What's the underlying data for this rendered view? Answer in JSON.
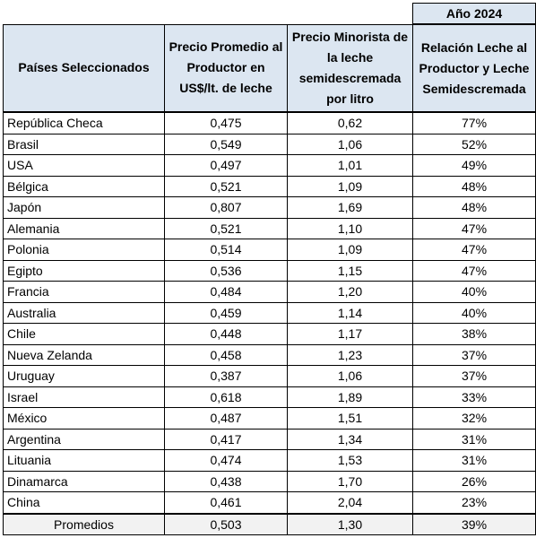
{
  "year_label": "Año 2024",
  "table": {
    "header": [
      "Países Seleccionados",
      "Precio Promedio al Productor en US$/lt. de leche",
      "Precio Minorista de la leche semidescremada por litro",
      "Relación Leche al Productor y Leche Semidescremada"
    ],
    "rows": [
      [
        "República Checa",
        "0,475",
        "0,62",
        "77%"
      ],
      [
        "Brasil",
        "0,549",
        "1,06",
        "52%"
      ],
      [
        "USA",
        "0,497",
        "1,01",
        "49%"
      ],
      [
        "Bélgica",
        "0,521",
        "1,09",
        "48%"
      ],
      [
        "Japón",
        "0,807",
        "1,69",
        "48%"
      ],
      [
        "Alemania",
        "0,521",
        "1,10",
        "47%"
      ],
      [
        "Polonia",
        "0,514",
        "1,09",
        "47%"
      ],
      [
        "Egipto",
        "0,536",
        "1,15",
        "47%"
      ],
      [
        "Francia",
        "0,484",
        "1,20",
        "40%"
      ],
      [
        "Australia",
        "0,459",
        "1,14",
        "40%"
      ],
      [
        "Chile",
        "0,448",
        "1,17",
        "38%"
      ],
      [
        "Nueva Zelanda",
        "0,458",
        "1,23",
        "37%"
      ],
      [
        "Uruguay",
        "0,387",
        "1,06",
        "37%"
      ],
      [
        "Israel",
        "0,618",
        "1,89",
        "33%"
      ],
      [
        "México",
        "0,487",
        "1,51",
        "32%"
      ],
      [
        "Argentina",
        "0,417",
        "1,34",
        "31%"
      ],
      [
        "Lituania",
        "0,474",
        "1,53",
        "31%"
      ],
      [
        "Dinamarca",
        "0,438",
        "1,70",
        "26%"
      ],
      [
        "China",
        "0,461",
        "2,04",
        "23%"
      ]
    ],
    "footer": [
      "Promedios",
      "0,503",
      "1,30",
      "39%"
    ]
  }
}
